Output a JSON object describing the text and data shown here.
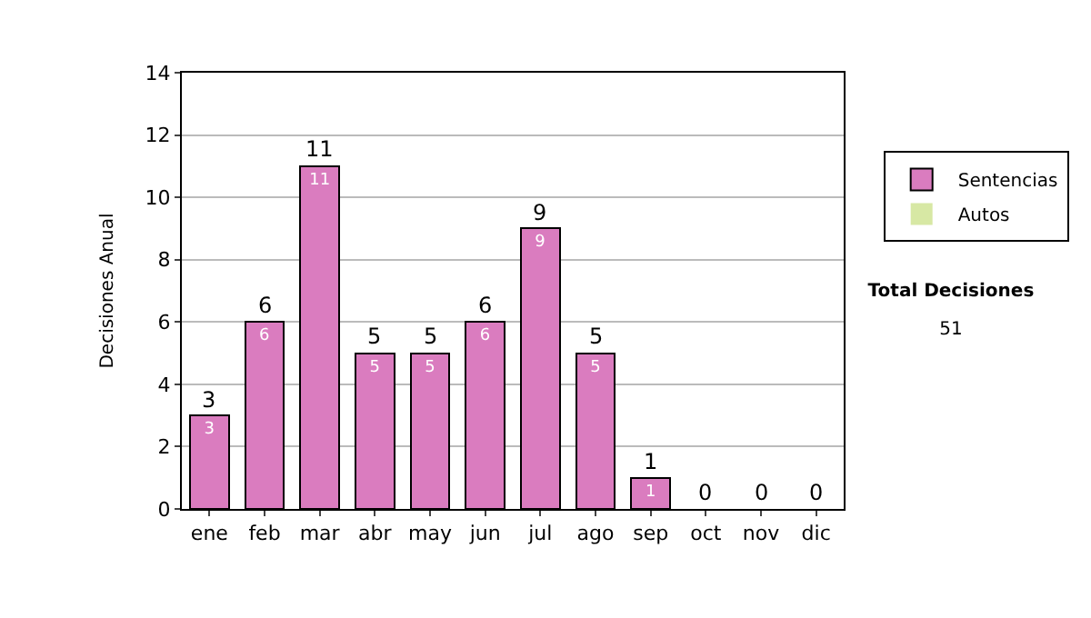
{
  "chart_data": {
    "type": "bar",
    "ylabel": "Decisiones Anual",
    "categories": [
      "ene",
      "feb",
      "mar",
      "abr",
      "may",
      "jun",
      "jul",
      "ago",
      "sep",
      "oct",
      "nov",
      "dic"
    ],
    "series": [
      {
        "name": "Sentencias",
        "color": "#da7cbf",
        "values": [
          3,
          6,
          11,
          5,
          5,
          6,
          9,
          5,
          1,
          0,
          0,
          0
        ],
        "value_labels": [
          "3",
          "6",
          "11",
          "5",
          "5",
          "6",
          "9",
          "5",
          "1",
          null,
          null,
          null
        ]
      },
      {
        "name": "Autos",
        "color": "#d7e8a4",
        "values": [
          0,
          0,
          0,
          0,
          0,
          0,
          0,
          0,
          0,
          0,
          0,
          0
        ]
      }
    ],
    "stacked": true,
    "totals": [
      "3",
      "6",
      "11",
      "5",
      "5",
      "6",
      "9",
      "5",
      "1",
      "0",
      "0",
      "0"
    ],
    "ylim": [
      0,
      14
    ],
    "yticks": [
      0,
      2,
      4,
      6,
      8,
      10,
      12,
      14
    ],
    "grid": "y",
    "legend": "right",
    "annotations": [
      "Total Decisiones",
      "51"
    ]
  }
}
